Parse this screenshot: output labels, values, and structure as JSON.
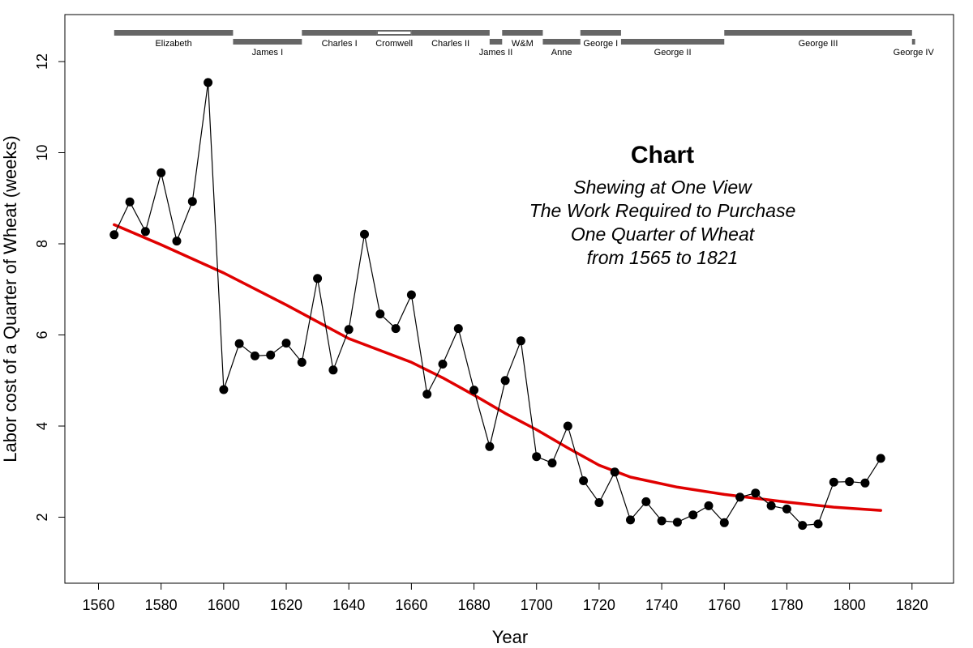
{
  "chart_data": {
    "type": "line",
    "title": "Chart",
    "subtitle": [
      "Shewing at One View",
      "The Work Required to Purchase",
      "One Quarter of Wheat",
      "from 1565 to 1821"
    ],
    "xlabel": "Year",
    "ylabel": "Labor cost of a Quarter of Wheat (weeks)",
    "xlim": [
      1560,
      1820
    ],
    "ylim": [
      0.6,
      12.8
    ],
    "xticks": [
      1560,
      1580,
      1600,
      1620,
      1640,
      1660,
      1680,
      1700,
      1720,
      1740,
      1760,
      1780,
      1800,
      1820
    ],
    "xtick_labels": [
      "1560",
      "1580",
      "1600",
      "1620",
      "1640",
      "1660",
      "1680",
      "1700",
      "1720",
      "1740",
      "1760",
      "1780",
      "1800",
      "1820"
    ],
    "yticks": [
      2,
      4,
      6,
      8,
      10,
      12
    ],
    "ytick_labels": [
      "2",
      "4",
      "6",
      "8",
      "10",
      "12"
    ],
    "grid": false,
    "colors": {
      "points": "#000000",
      "smooth": "#e00000",
      "reign_bar": "#666666",
      "commonwealth_fill": "#ffffff"
    },
    "series": [
      {
        "kind": "points-line",
        "x": [
          1565,
          1570,
          1575,
          1580,
          1585,
          1590,
          1595,
          1600,
          1605,
          1610,
          1615,
          1620,
          1625,
          1630,
          1635,
          1640,
          1645,
          1650,
          1655,
          1660,
          1665,
          1670,
          1675,
          1680,
          1685,
          1690,
          1695,
          1700,
          1705,
          1710,
          1715,
          1720,
          1725,
          1730,
          1735,
          1740,
          1745,
          1750,
          1755,
          1760,
          1765,
          1770,
          1775,
          1780,
          1785,
          1790,
          1795,
          1800,
          1805,
          1810
        ],
        "values": [
          8.2,
          8.92,
          8.27,
          9.56,
          8.06,
          8.93,
          11.54,
          4.8,
          5.81,
          5.54,
          5.56,
          5.82,
          5.4,
          7.24,
          5.23,
          6.12,
          8.21,
          6.46,
          6.14,
          6.88,
          4.7,
          5.36,
          6.14,
          4.79,
          3.55,
          5.0,
          5.87,
          3.33,
          3.19,
          4.0,
          2.8,
          2.32,
          2.99,
          1.94,
          2.34,
          1.92,
          1.89,
          2.05,
          2.25,
          1.88,
          2.44,
          2.53,
          2.25,
          2.18,
          1.82,
          1.85,
          2.77,
          2.78,
          2.75,
          3.29
        ]
      },
      {
        "kind": "smooth",
        "x": [
          1565,
          1580,
          1600,
          1620,
          1640,
          1660,
          1670,
          1680,
          1690,
          1700,
          1710,
          1720,
          1730,
          1745,
          1760,
          1780,
          1795,
          1810
        ],
        "values": [
          8.42,
          7.98,
          7.36,
          6.66,
          5.92,
          5.4,
          5.06,
          4.68,
          4.28,
          3.92,
          3.52,
          3.14,
          2.88,
          2.66,
          2.5,
          2.33,
          2.22,
          2.15
        ]
      }
    ],
    "reigns": [
      {
        "name": "Elizabeth",
        "start": 1565,
        "end": 1603,
        "row": "upper"
      },
      {
        "name": "James I",
        "start": 1603,
        "end": 1625,
        "row": "lower"
      },
      {
        "name": "Charles I",
        "start": 1625,
        "end": 1649,
        "row": "upper"
      },
      {
        "name": "Cromwell",
        "start": 1649,
        "end": 1660,
        "row": "upper",
        "commonwealth": true
      },
      {
        "name": "Charles II",
        "start": 1660,
        "end": 1685,
        "row": "upper"
      },
      {
        "name": "James II",
        "start": 1685,
        "end": 1689,
        "row": "lower"
      },
      {
        "name": "W&M",
        "start": 1689,
        "end": 1702,
        "row": "upper"
      },
      {
        "name": "Anne",
        "start": 1702,
        "end": 1714,
        "row": "lower"
      },
      {
        "name": "George I",
        "start": 1714,
        "end": 1727,
        "row": "upper"
      },
      {
        "name": "George II",
        "start": 1727,
        "end": 1760,
        "row": "lower"
      },
      {
        "name": "George III",
        "start": 1760,
        "end": 1820,
        "row": "upper"
      },
      {
        "name": "George IV",
        "start": 1820,
        "end": 1821,
        "row": "lower"
      }
    ]
  }
}
